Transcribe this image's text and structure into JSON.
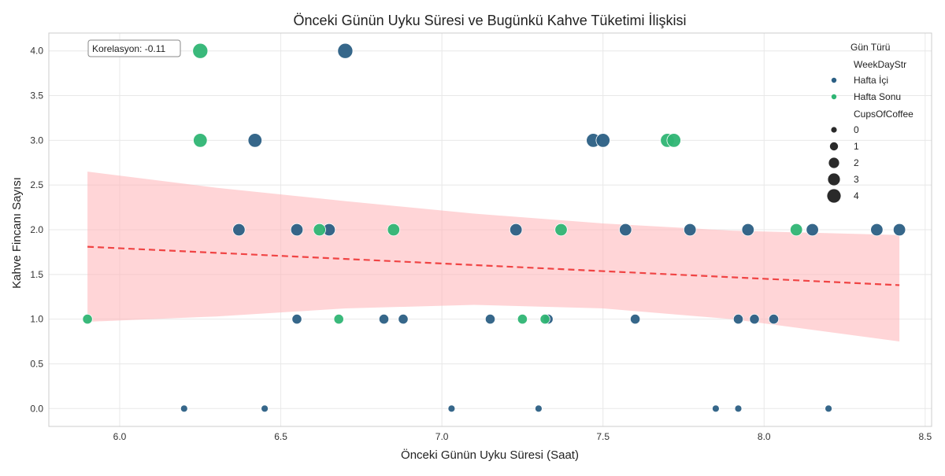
{
  "chart_data": {
    "type": "scatter",
    "title": "Önceki Günün Uyku Süresi ve Bugünkü Kahve Tüketimi İlişkisi",
    "xlabel": "Önceki Günün Uyku Süresi (Saat)",
    "ylabel": "Kahve Fincanı Sayısı",
    "xlim": [
      5.78,
      8.52
    ],
    "ylim": [
      -0.2,
      4.2
    ],
    "x_ticks": [
      6.0,
      6.5,
      7.0,
      7.5,
      8.0,
      8.5
    ],
    "x_tick_labels": [
      "6.0",
      "6.5",
      "7.0",
      "7.5",
      "8.0",
      "8.5"
    ],
    "y_ticks": [
      0.0,
      0.5,
      1.0,
      1.5,
      2.0,
      2.5,
      3.0,
      3.5,
      4.0
    ],
    "y_tick_labels": [
      "0.0",
      "0.5",
      "1.0",
      "1.5",
      "2.0",
      "2.5",
      "3.0",
      "3.5",
      "4.0"
    ],
    "grid": true,
    "annotation": "Korelasyon: -0.11",
    "colors": {
      "weekday": "#2b5f84",
      "weekend": "#2fb574",
      "regression": "#f04444",
      "confidence_band": "#ffb3b6"
    },
    "legend": {
      "title": "Gün Türü",
      "placement": "top-right",
      "hue_title": "WeekDayStr",
      "hue_items": [
        {
          "label": "Hafta İçi",
          "color": "#2b5f84"
        },
        {
          "label": "Hafta Sonu",
          "color": "#2fb574"
        }
      ],
      "size_title": "CupsOfCoffee",
      "size_items": [
        {
          "label": "0",
          "value": 0
        },
        {
          "label": "1",
          "value": 1
        },
        {
          "label": "2",
          "value": 2
        },
        {
          "label": "3",
          "value": 3
        },
        {
          "label": "4",
          "value": 4
        }
      ]
    },
    "series": [
      {
        "name": "Hafta İçi",
        "color": "#2b5f84",
        "points": [
          {
            "x": 6.7,
            "y": 4
          },
          {
            "x": 6.42,
            "y": 3
          },
          {
            "x": 7.47,
            "y": 3
          },
          {
            "x": 7.5,
            "y": 3
          },
          {
            "x": 6.37,
            "y": 2
          },
          {
            "x": 6.55,
            "y": 2
          },
          {
            "x": 6.65,
            "y": 2
          },
          {
            "x": 7.23,
            "y": 2
          },
          {
            "x": 7.57,
            "y": 2
          },
          {
            "x": 7.77,
            "y": 2
          },
          {
            "x": 7.95,
            "y": 2
          },
          {
            "x": 8.15,
            "y": 2
          },
          {
            "x": 8.35,
            "y": 2
          },
          {
            "x": 8.42,
            "y": 2
          },
          {
            "x": 6.55,
            "y": 1
          },
          {
            "x": 6.82,
            "y": 1
          },
          {
            "x": 6.88,
            "y": 1
          },
          {
            "x": 7.15,
            "y": 1
          },
          {
            "x": 7.33,
            "y": 1
          },
          {
            "x": 7.6,
            "y": 1
          },
          {
            "x": 7.92,
            "y": 1
          },
          {
            "x": 7.97,
            "y": 1
          },
          {
            "x": 8.03,
            "y": 1
          },
          {
            "x": 6.2,
            "y": 0
          },
          {
            "x": 6.45,
            "y": 0
          },
          {
            "x": 7.03,
            "y": 0
          },
          {
            "x": 7.3,
            "y": 0
          },
          {
            "x": 7.85,
            "y": 0
          },
          {
            "x": 7.92,
            "y": 0
          },
          {
            "x": 8.2,
            "y": 0
          }
        ]
      },
      {
        "name": "Hafta Sonu",
        "color": "#2fb574",
        "points": [
          {
            "x": 6.25,
            "y": 4
          },
          {
            "x": 6.25,
            "y": 3
          },
          {
            "x": 7.7,
            "y": 3
          },
          {
            "x": 7.72,
            "y": 3
          },
          {
            "x": 6.62,
            "y": 2
          },
          {
            "x": 6.85,
            "y": 2
          },
          {
            "x": 7.37,
            "y": 2
          },
          {
            "x": 8.1,
            "y": 2
          },
          {
            "x": 5.9,
            "y": 1
          },
          {
            "x": 6.68,
            "y": 1
          },
          {
            "x": 7.25,
            "y": 1
          },
          {
            "x": 7.32,
            "y": 1
          }
        ]
      }
    ],
    "regression": {
      "line": [
        [
          5.9,
          1.81
        ],
        [
          8.42,
          1.38
        ]
      ],
      "ci_upper": [
        [
          5.9,
          2.65
        ],
        [
          6.3,
          2.47
        ],
        [
          6.7,
          2.32
        ],
        [
          7.1,
          2.18
        ],
        [
          7.5,
          2.07
        ],
        [
          7.9,
          1.99
        ],
        [
          8.42,
          1.94
        ]
      ],
      "ci_lower": [
        [
          5.9,
          0.97
        ],
        [
          6.3,
          1.03
        ],
        [
          6.7,
          1.12
        ],
        [
          7.1,
          1.16
        ],
        [
          7.5,
          1.12
        ],
        [
          7.9,
          1.0
        ],
        [
          8.42,
          0.75
        ]
      ]
    }
  }
}
